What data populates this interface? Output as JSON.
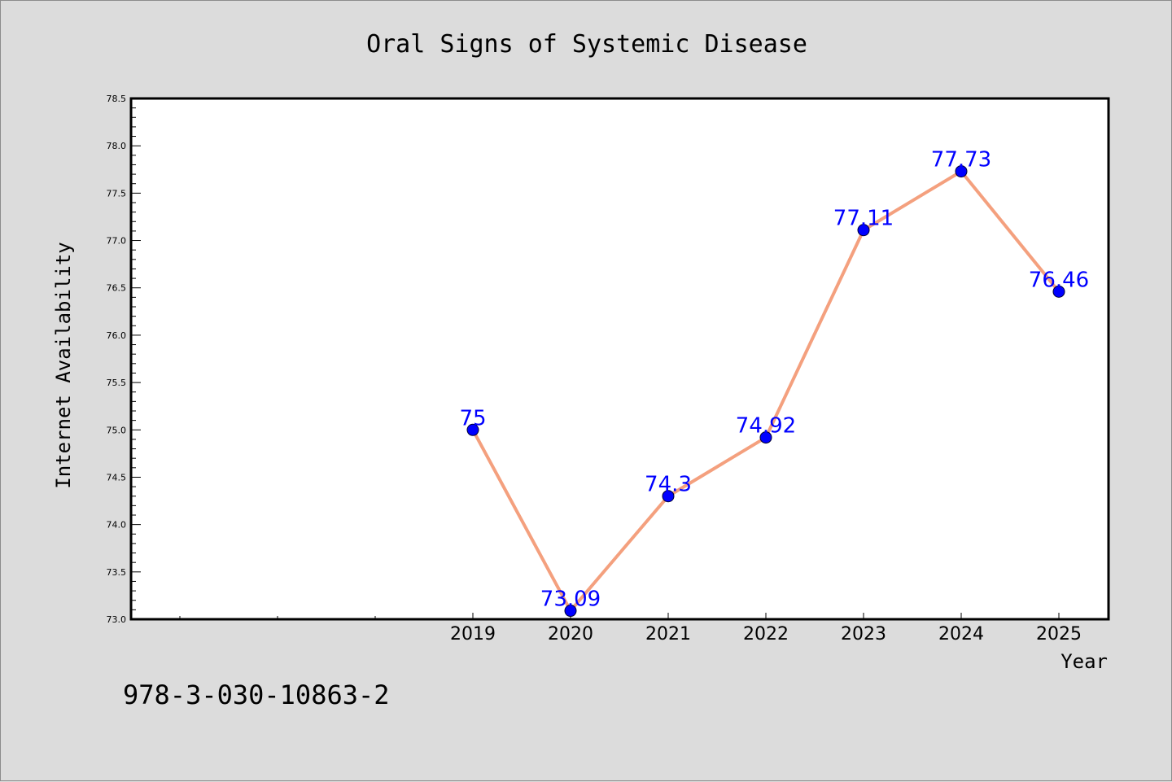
{
  "chart_data": {
    "type": "line",
    "title": "Oral Signs of Systemic Disease",
    "xlabel": "Year",
    "ylabel": "Internet Availability",
    "categories": [
      "2019",
      "2020",
      "2021",
      "2022",
      "2023",
      "2024",
      "2025"
    ],
    "series": [
      {
        "values": [
          75,
          73.09,
          74.3,
          74.92,
          77.11,
          77.73,
          76.46
        ],
        "labels": [
          "75",
          "73.09",
          "74.3",
          "74.92",
          "77.11",
          "77.73",
          "76.46"
        ]
      }
    ],
    "ylim": [
      73.0,
      78.5
    ],
    "yticks": [
      "73.0",
      "73.5",
      "74.0",
      "74.5",
      "75.0",
      "75.5",
      "76.0",
      "76.5",
      "77.0",
      "77.5",
      "78.0",
      "78.5"
    ],
    "grid": false,
    "legend": "none",
    "colors": {
      "line": "#f4a07e",
      "marker": "#0000ff",
      "label": "#0000ff",
      "background": "#dcdcdc",
      "plot_area": "#ffffff"
    }
  },
  "footnote": "978-3-030-10863-2"
}
